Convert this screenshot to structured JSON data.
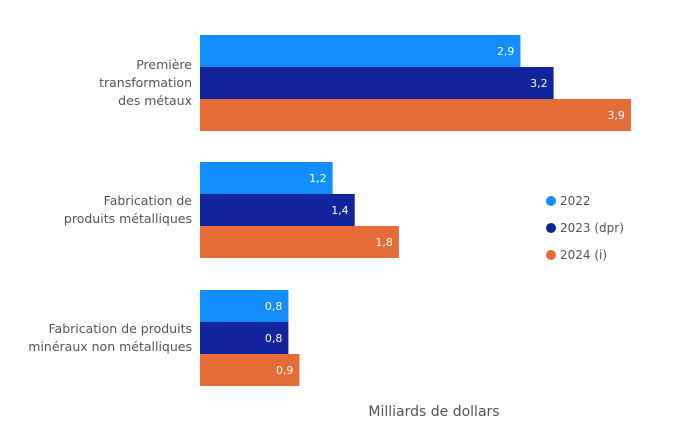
{
  "chart_data": {
    "type": "bar",
    "orientation": "horizontal",
    "title": "",
    "xlabel": "Milliards de dollars",
    "ylabel": "",
    "xlim": [
      0,
      4
    ],
    "grid": false,
    "legend_position": "right",
    "categories": [
      [
        "Première",
        "transformation",
        "des métaux"
      ],
      [
        "Fabrication de",
        "produits métalliques"
      ],
      [
        "Fabrication de produits",
        "minéraux non métalliques"
      ]
    ],
    "series": [
      {
        "name": "2022",
        "color": "#118DFF",
        "values": [
          2.9,
          1.2,
          0.8
        ],
        "labels": [
          "2,9",
          "1,2",
          "0,8"
        ]
      },
      {
        "name": "2023 (dpr)",
        "color": "#12239E",
        "values": [
          3.2,
          1.4,
          0.8
        ],
        "labels": [
          "3,2",
          "1,4",
          "0,8"
        ]
      },
      {
        "name": "2024 (i)",
        "color": "#E66C37",
        "values": [
          3.9,
          1.8,
          0.9
        ],
        "labels": [
          "3,9",
          "1,8",
          "0,9"
        ]
      }
    ]
  }
}
